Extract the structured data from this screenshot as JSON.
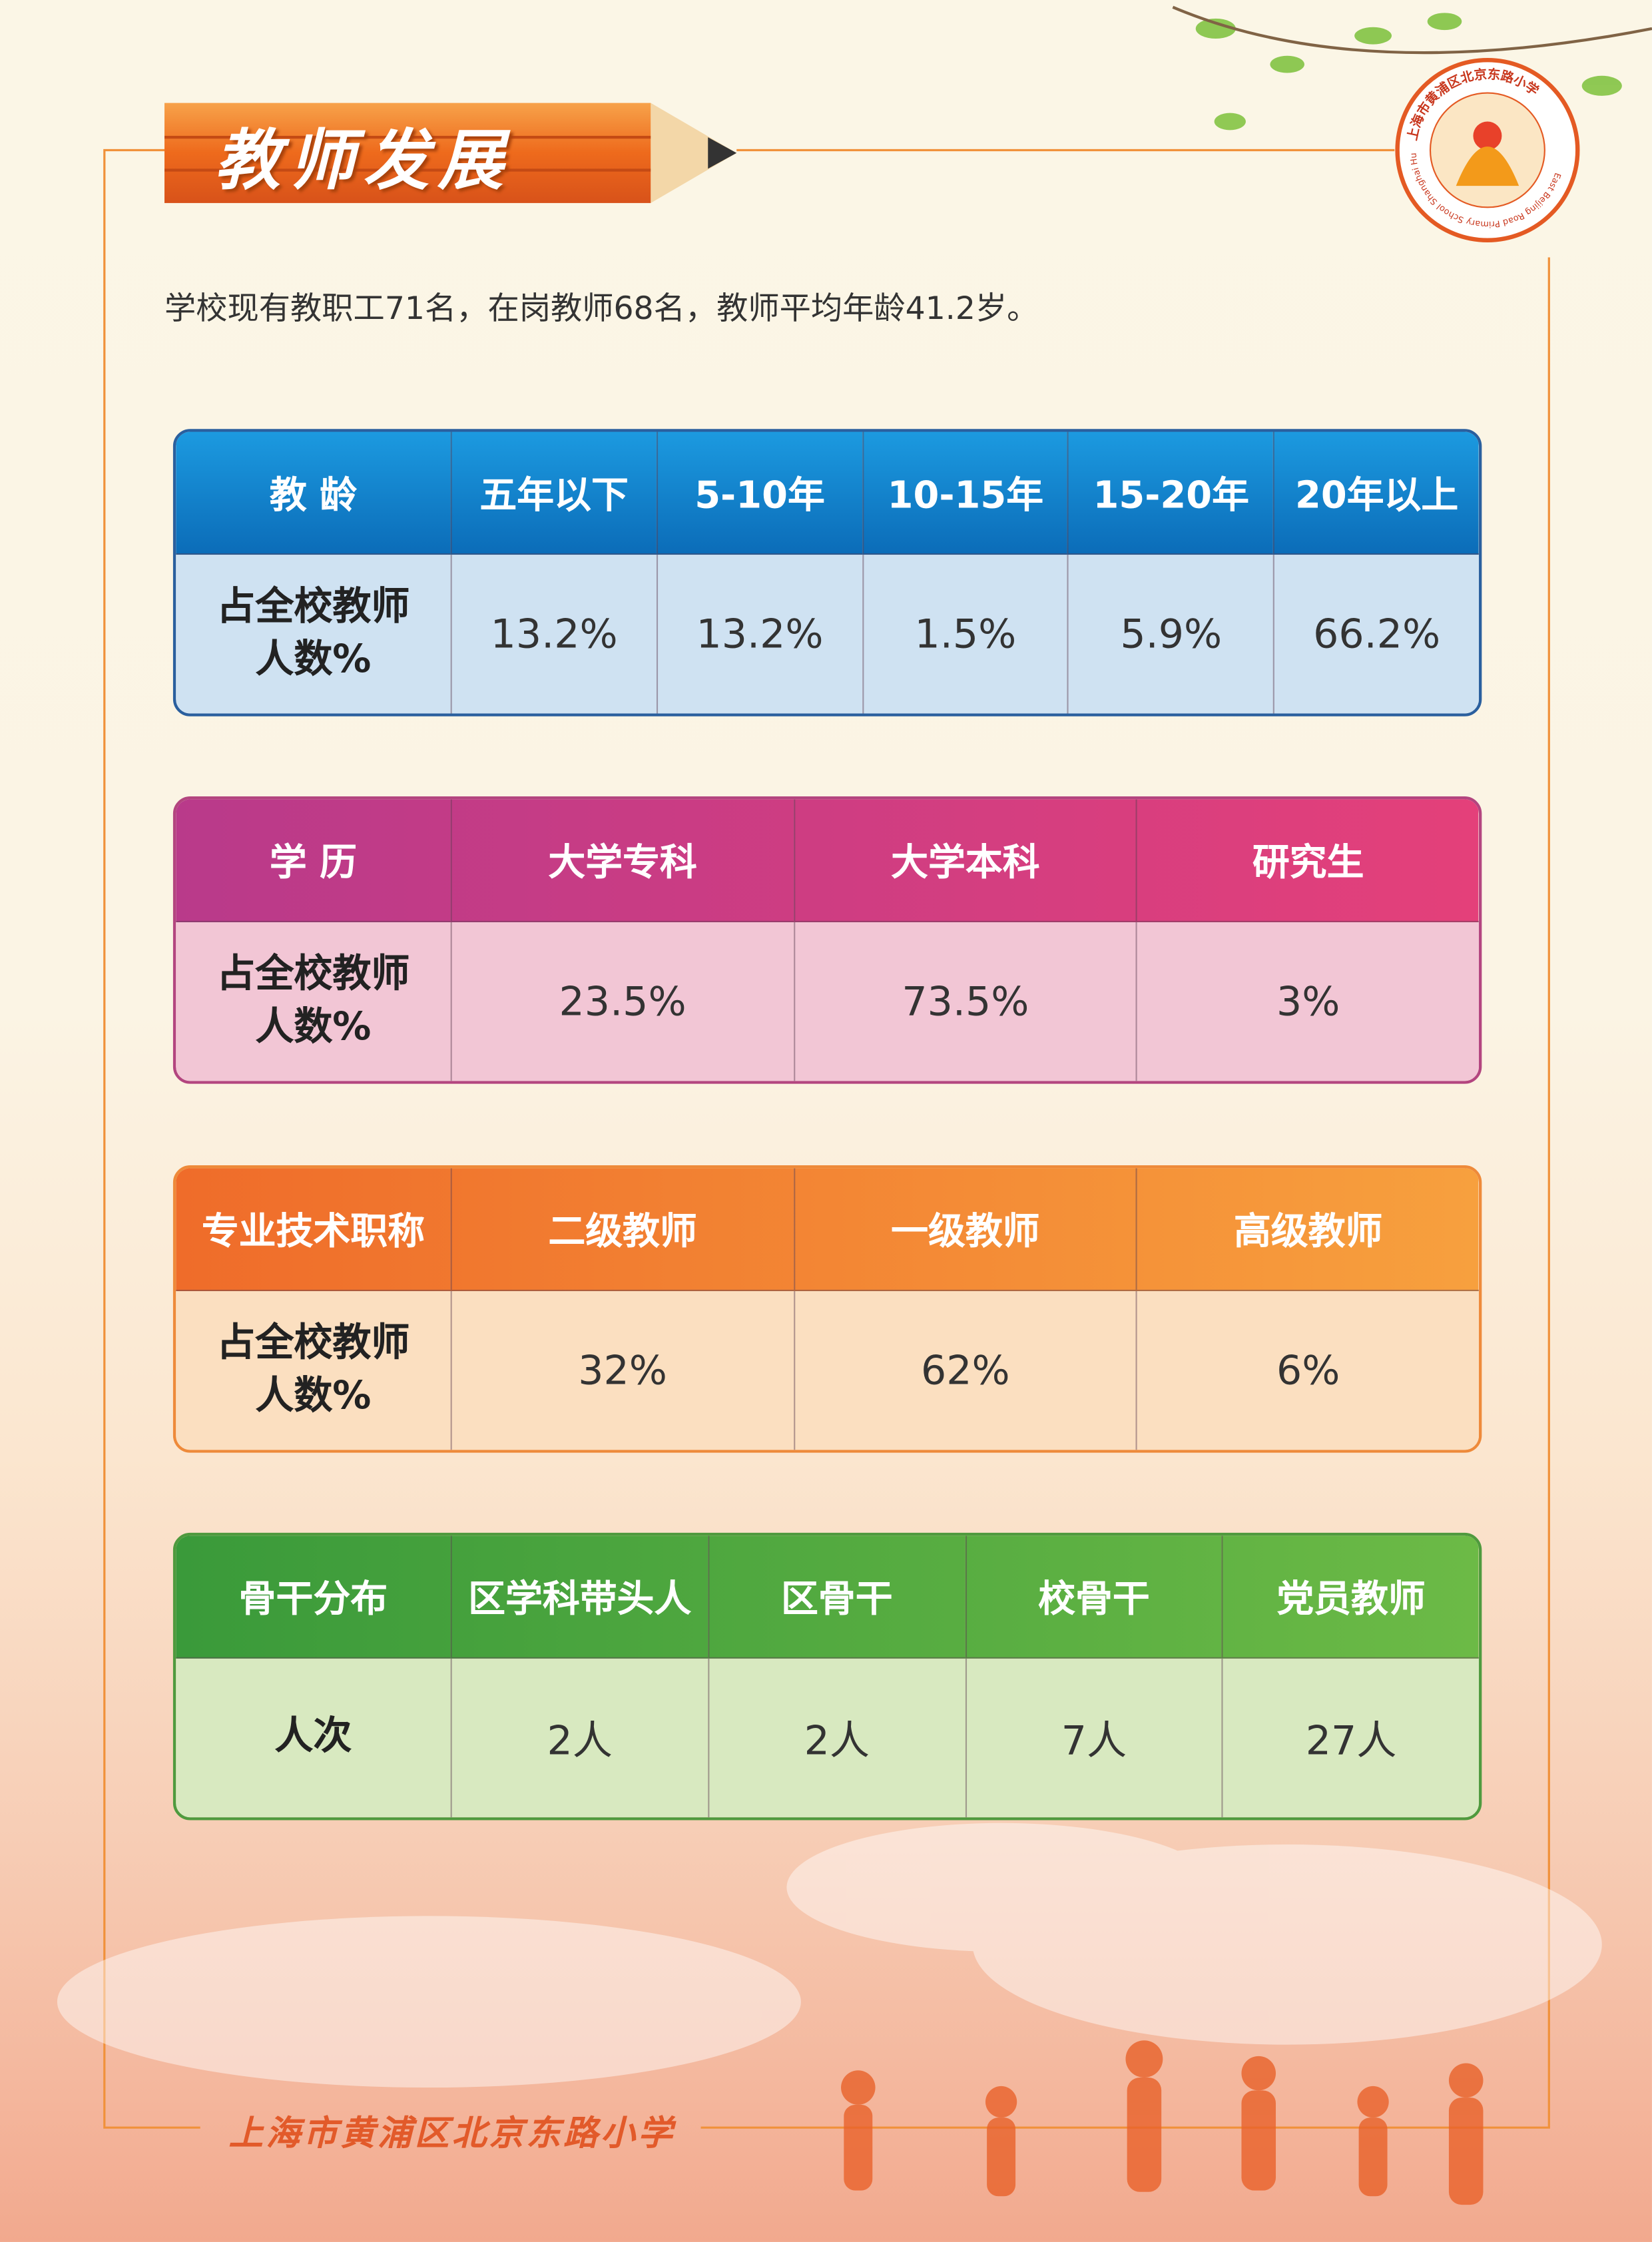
{
  "header": {
    "title": "教师发展"
  },
  "logo": {
    "name_cn": "上海市黄浦区北京东路小学",
    "name_en": "East Beijing Road Primary School Shanghai Huangpu"
  },
  "intro": "学校现有教职工71名，在岗教师68名，教师平均年龄41.2岁。",
  "tables": [
    {
      "header": [
        "教 龄",
        "五年以下",
        "5-10年",
        "10-15年",
        "15-20年",
        "20年以上"
      ],
      "row": [
        "占全校教师人数%",
        "13.2%",
        "13.2%",
        "1.5%",
        "5.9%",
        "66.2%"
      ]
    },
    {
      "header": [
        "学 历",
        "大学专科",
        "大学本科",
        "研究生"
      ],
      "row": [
        "占全校教师人数%",
        "23.5%",
        "73.5%",
        "3%"
      ]
    },
    {
      "header": [
        "专业技术职称",
        "二级教师",
        "一级教师",
        "高级教师"
      ],
      "row": [
        "占全校教师人数%",
        "32%",
        "62%",
        "6%"
      ]
    },
    {
      "header": [
        "骨干分布",
        "区学科带头人",
        "区骨干",
        "校骨干",
        "党员教师"
      ],
      "row": [
        "人次",
        "2人",
        "2人",
        "7人",
        "27人"
      ]
    }
  ],
  "footer": "上海市黄浦区北京东路小学"
}
